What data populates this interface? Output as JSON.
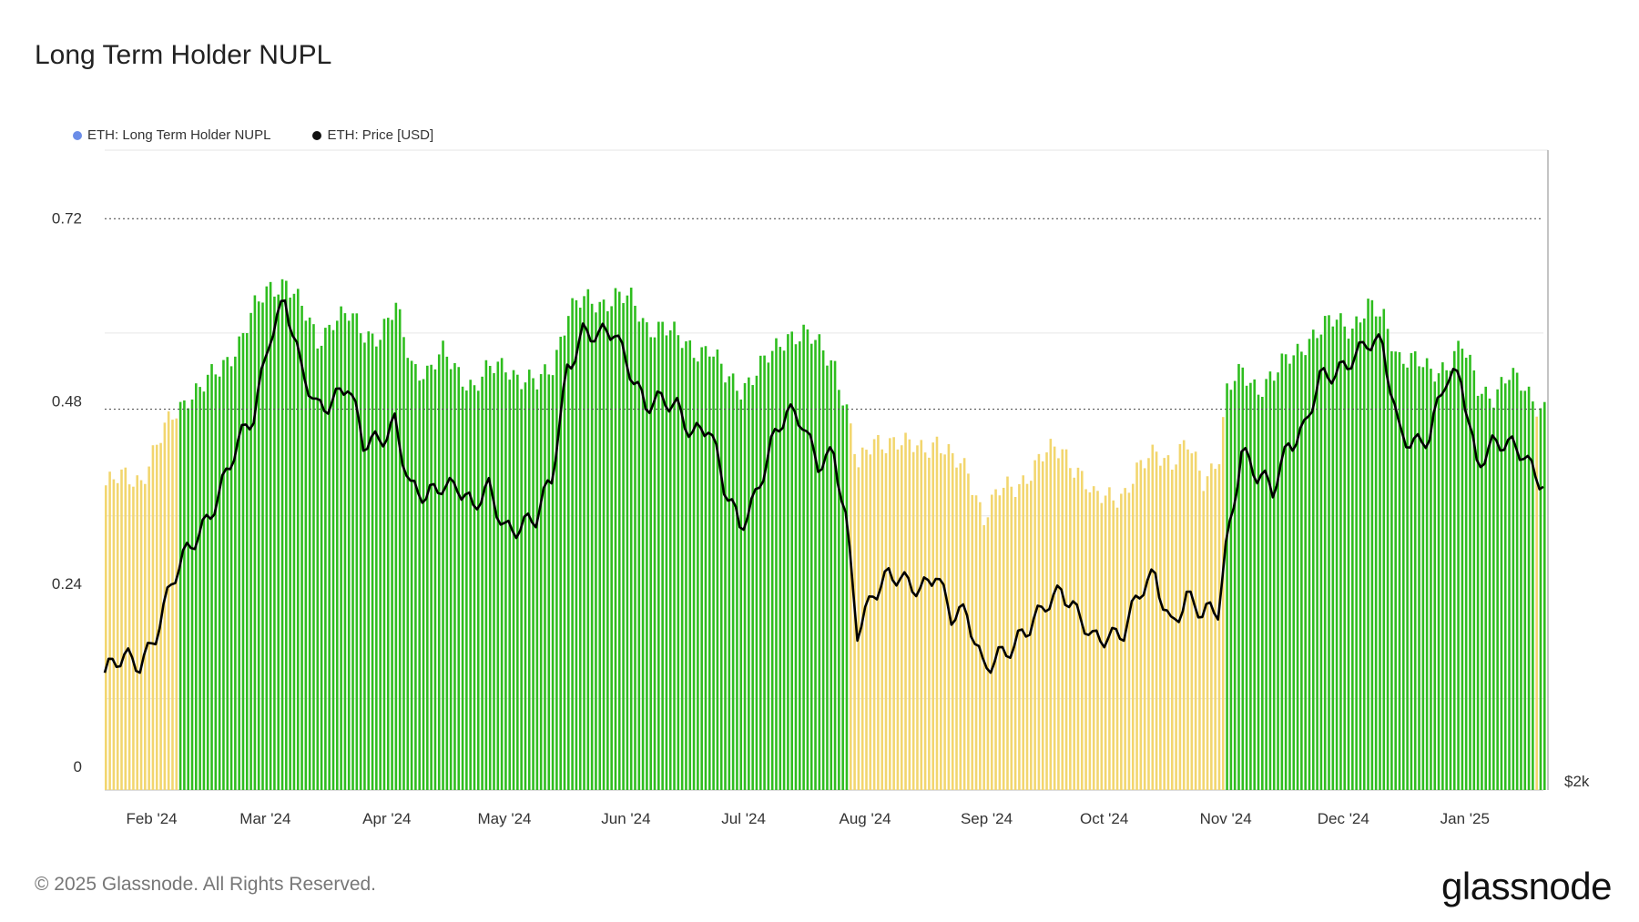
{
  "title": "Long Term Holder NUPL",
  "legend": [
    {
      "label": "ETH: Long Term Holder NUPL",
      "color": "#6b8de8"
    },
    {
      "label": "ETH: Price [USD]",
      "color": "#111111"
    }
  ],
  "footer": "© 2025 Glassnode. All Rights Reserved.",
  "brand": "glassnode",
  "colors": {
    "green": "#2ebd1e",
    "yellow": "#f2d66e",
    "price_line": "#000000",
    "grid": "#e6e6e6"
  },
  "chart_data": {
    "type": "bar",
    "x_labels": [
      "Feb '24",
      "Mar '24",
      "Apr '24",
      "May '24",
      "Jun '24",
      "Jul '24",
      "Aug '24",
      "Sep '24",
      "Oct '24",
      "Nov '24",
      "Dec '24",
      "Jan '25"
    ],
    "y_ticks": [
      "0",
      "0.24",
      "0.48",
      "0.72"
    ],
    "y_right_label": "$2k",
    "ylim": [
      0,
      0.84
    ],
    "reference_lines": [
      0.5,
      0.75
    ],
    "x_range": [
      "2024-01-27",
      "2025-01-28"
    ],
    "color_rule": "green when NUPL >= 0.5, yellow when below",
    "nupl_series": {
      "name": "ETH: Long Term Holder NUPL",
      "points": [
        [
          "2024-01-27",
          0.4
        ],
        [
          "2024-02-01",
          0.41
        ],
        [
          "2024-02-05",
          0.41
        ],
        [
          "2024-02-09",
          0.45
        ],
        [
          "2024-02-13",
          0.49
        ],
        [
          "2024-02-17",
          0.52
        ],
        [
          "2024-02-21",
          0.53
        ],
        [
          "2024-02-25",
          0.55
        ],
        [
          "2024-03-01",
          0.59
        ],
        [
          "2024-03-05",
          0.63
        ],
        [
          "2024-03-09",
          0.66
        ],
        [
          "2024-03-13",
          0.67
        ],
        [
          "2024-03-17",
          0.63
        ],
        [
          "2024-03-21",
          0.59
        ],
        [
          "2024-03-25",
          0.62
        ],
        [
          "2024-03-29",
          0.62
        ],
        [
          "2024-04-02",
          0.6
        ],
        [
          "2024-04-06",
          0.6
        ],
        [
          "2024-04-10",
          0.63
        ],
        [
          "2024-04-14",
          0.56
        ],
        [
          "2024-04-18",
          0.55
        ],
        [
          "2024-04-22",
          0.57
        ],
        [
          "2024-04-26",
          0.55
        ],
        [
          "2024-04-30",
          0.53
        ],
        [
          "2024-05-04",
          0.55
        ],
        [
          "2024-05-08",
          0.56
        ],
        [
          "2024-05-12",
          0.54
        ],
        [
          "2024-05-16",
          0.53
        ],
        [
          "2024-05-20",
          0.56
        ],
        [
          "2024-05-24",
          0.63
        ],
        [
          "2024-05-28",
          0.64
        ],
        [
          "2024-06-01",
          0.64
        ],
        [
          "2024-06-05",
          0.65
        ],
        [
          "2024-06-09",
          0.64
        ],
        [
          "2024-06-13",
          0.61
        ],
        [
          "2024-06-17",
          0.61
        ],
        [
          "2024-06-21",
          0.59
        ],
        [
          "2024-06-25",
          0.58
        ],
        [
          "2024-06-29",
          0.58
        ],
        [
          "2024-07-03",
          0.54
        ],
        [
          "2024-07-07",
          0.53
        ],
        [
          "2024-07-11",
          0.55
        ],
        [
          "2024-07-15",
          0.57
        ],
        [
          "2024-07-19",
          0.6
        ],
        [
          "2024-07-23",
          0.6
        ],
        [
          "2024-07-27",
          0.58
        ],
        [
          "2024-07-31",
          0.56
        ],
        [
          "2024-08-03",
          0.5
        ],
        [
          "2024-08-06",
          0.42
        ],
        [
          "2024-08-10",
          0.46
        ],
        [
          "2024-08-14",
          0.46
        ],
        [
          "2024-08-18",
          0.45
        ],
        [
          "2024-08-22",
          0.45
        ],
        [
          "2024-08-26",
          0.46
        ],
        [
          "2024-08-30",
          0.43
        ],
        [
          "2024-09-03",
          0.42
        ],
        [
          "2024-09-07",
          0.36
        ],
        [
          "2024-09-11",
          0.39
        ],
        [
          "2024-09-15",
          0.4
        ],
        [
          "2024-09-19",
          0.42
        ],
        [
          "2024-09-23",
          0.44
        ],
        [
          "2024-09-27",
          0.45
        ],
        [
          "2024-10-01",
          0.42
        ],
        [
          "2024-10-05",
          0.38
        ],
        [
          "2024-10-09",
          0.39
        ],
        [
          "2024-10-13",
          0.39
        ],
        [
          "2024-10-17",
          0.42
        ],
        [
          "2024-10-21",
          0.45
        ],
        [
          "2024-10-25",
          0.43
        ],
        [
          "2024-10-29",
          0.45
        ],
        [
          "2024-11-02",
          0.41
        ],
        [
          "2024-11-06",
          0.44
        ],
        [
          "2024-11-08",
          0.52
        ],
        [
          "2024-11-12",
          0.55
        ],
        [
          "2024-11-16",
          0.53
        ],
        [
          "2024-11-20",
          0.54
        ],
        [
          "2024-11-24",
          0.57
        ],
        [
          "2024-11-28",
          0.59
        ],
        [
          "2024-12-02",
          0.6
        ],
        [
          "2024-12-06",
          0.62
        ],
        [
          "2024-12-10",
          0.61
        ],
        [
          "2024-12-14",
          0.63
        ],
        [
          "2024-12-18",
          0.62
        ],
        [
          "2024-12-22",
          0.57
        ],
        [
          "2024-12-26",
          0.56
        ],
        [
          "2024-12-30",
          0.55
        ],
        [
          "2025-01-03",
          0.56
        ],
        [
          "2025-01-07",
          0.58
        ],
        [
          "2025-01-11",
          0.53
        ],
        [
          "2025-01-15",
          0.52
        ],
        [
          "2025-01-19",
          0.54
        ],
        [
          "2025-01-23",
          0.53
        ],
        [
          "2025-01-26",
          0.51
        ],
        [
          "2025-01-28",
          0.5
        ]
      ]
    },
    "price_series": {
      "name": "ETH: Price [USD]",
      "points": [
        [
          "2024-01-27",
          2250
        ],
        [
          "2024-02-01",
          2300
        ],
        [
          "2024-02-05",
          2300
        ],
        [
          "2024-02-09",
          2450
        ],
        [
          "2024-02-13",
          2650
        ],
        [
          "2024-02-17",
          2800
        ],
        [
          "2024-02-21",
          2950
        ],
        [
          "2024-02-25",
          3100
        ],
        [
          "2024-03-01",
          3300
        ],
        [
          "2024-03-05",
          3450
        ],
        [
          "2024-03-09",
          3850
        ],
        [
          "2024-03-13",
          4000
        ],
        [
          "2024-03-17",
          3650
        ],
        [
          "2024-03-21",
          3500
        ],
        [
          "2024-03-25",
          3550
        ],
        [
          "2024-03-29",
          3600
        ],
        [
          "2024-04-02",
          3300
        ],
        [
          "2024-04-06",
          3350
        ],
        [
          "2024-04-10",
          3450
        ],
        [
          "2024-04-14",
          3100
        ],
        [
          "2024-04-18",
          3050
        ],
        [
          "2024-04-22",
          3150
        ],
        [
          "2024-04-26",
          3150
        ],
        [
          "2024-04-30",
          3000
        ],
        [
          "2024-05-04",
          3100
        ],
        [
          "2024-05-08",
          2950
        ],
        [
          "2024-05-12",
          2950
        ],
        [
          "2024-05-16",
          2950
        ],
        [
          "2024-05-20",
          3150
        ],
        [
          "2024-05-24",
          3700
        ],
        [
          "2024-05-28",
          3850
        ],
        [
          "2024-06-01",
          3800
        ],
        [
          "2024-06-05",
          3850
        ],
        [
          "2024-06-09",
          3700
        ],
        [
          "2024-06-13",
          3500
        ],
        [
          "2024-06-17",
          3500
        ],
        [
          "2024-06-21",
          3500
        ],
        [
          "2024-06-25",
          3400
        ],
        [
          "2024-06-29",
          3400
        ],
        [
          "2024-07-03",
          3100
        ],
        [
          "2024-07-07",
          2950
        ],
        [
          "2024-07-11",
          3100
        ],
        [
          "2024-07-15",
          3300
        ],
        [
          "2024-07-19",
          3450
        ],
        [
          "2024-07-23",
          3450
        ],
        [
          "2024-07-27",
          3250
        ],
        [
          "2024-07-31",
          3250
        ],
        [
          "2024-08-03",
          2950
        ],
        [
          "2024-08-06",
          2450
        ],
        [
          "2024-08-10",
          2650
        ],
        [
          "2024-08-14",
          2700
        ],
        [
          "2024-08-18",
          2650
        ],
        [
          "2024-08-22",
          2650
        ],
        [
          "2024-08-26",
          2750
        ],
        [
          "2024-08-30",
          2500
        ],
        [
          "2024-09-03",
          2500
        ],
        [
          "2024-09-07",
          2300
        ],
        [
          "2024-09-11",
          2350
        ],
        [
          "2024-09-15",
          2350
        ],
        [
          "2024-09-19",
          2450
        ],
        [
          "2024-09-23",
          2600
        ],
        [
          "2024-09-27",
          2650
        ],
        [
          "2024-10-01",
          2500
        ],
        [
          "2024-10-05",
          2400
        ],
        [
          "2024-10-09",
          2450
        ],
        [
          "2024-10-13",
          2450
        ],
        [
          "2024-10-17",
          2600
        ],
        [
          "2024-10-21",
          2700
        ],
        [
          "2024-10-25",
          2500
        ],
        [
          "2024-10-29",
          2600
        ],
        [
          "2024-11-02",
          2500
        ],
        [
          "2024-11-06",
          2550
        ],
        [
          "2024-11-08",
          2850
        ],
        [
          "2024-11-12",
          3300
        ],
        [
          "2024-11-16",
          3150
        ],
        [
          "2024-11-20",
          3100
        ],
        [
          "2024-11-24",
          3350
        ],
        [
          "2024-11-28",
          3400
        ],
        [
          "2024-12-02",
          3600
        ],
        [
          "2024-12-06",
          3650
        ],
        [
          "2024-12-10",
          3750
        ],
        [
          "2024-12-14",
          3800
        ],
        [
          "2024-12-18",
          3750
        ],
        [
          "2024-12-22",
          3400
        ],
        [
          "2024-12-26",
          3350
        ],
        [
          "2024-12-30",
          3350
        ],
        [
          "2025-01-03",
          3600
        ],
        [
          "2025-01-07",
          3650
        ],
        [
          "2025-01-11",
          3250
        ],
        [
          "2025-01-15",
          3300
        ],
        [
          "2025-01-19",
          3300
        ],
        [
          "2025-01-23",
          3300
        ],
        [
          "2025-01-26",
          3200
        ],
        [
          "2025-01-28",
          3150
        ]
      ]
    }
  }
}
